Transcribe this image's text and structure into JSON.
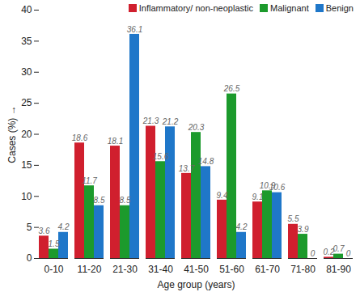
{
  "chart_data": {
    "type": "bar",
    "xlabel": "Age group (years)",
    "ylabel": "Cases (%)",
    "categories": [
      "0-10",
      "11-20",
      "21-30",
      "31-40",
      "41-50",
      "51-60",
      "61-70",
      "71-80",
      "81-90"
    ],
    "series": [
      {
        "name": "Inflammatory/ non-neoplastic",
        "color": "#d01f2e",
        "values": [
          3.6,
          18.6,
          18.1,
          21.3,
          13.7,
          9.4,
          9.1,
          5.5,
          0.2
        ]
      },
      {
        "name": "Malignant",
        "color": "#1c9a2c",
        "values": [
          1.5,
          11.7,
          8.5,
          15.6,
          20.3,
          26.5,
          10.9,
          3.9,
          0.7
        ]
      },
      {
        "name": "Benign",
        "color": "#1f77c9",
        "values": [
          4.2,
          8.5,
          36.1,
          21.2,
          14.8,
          4.2,
          10.6,
          0,
          0
        ]
      }
    ],
    "ylim": [
      0,
      40
    ],
    "yticks": [
      0,
      5,
      10,
      15,
      20,
      25,
      30,
      35,
      40
    ],
    "grid": false,
    "legend": "upper right",
    "data_labels": true
  }
}
